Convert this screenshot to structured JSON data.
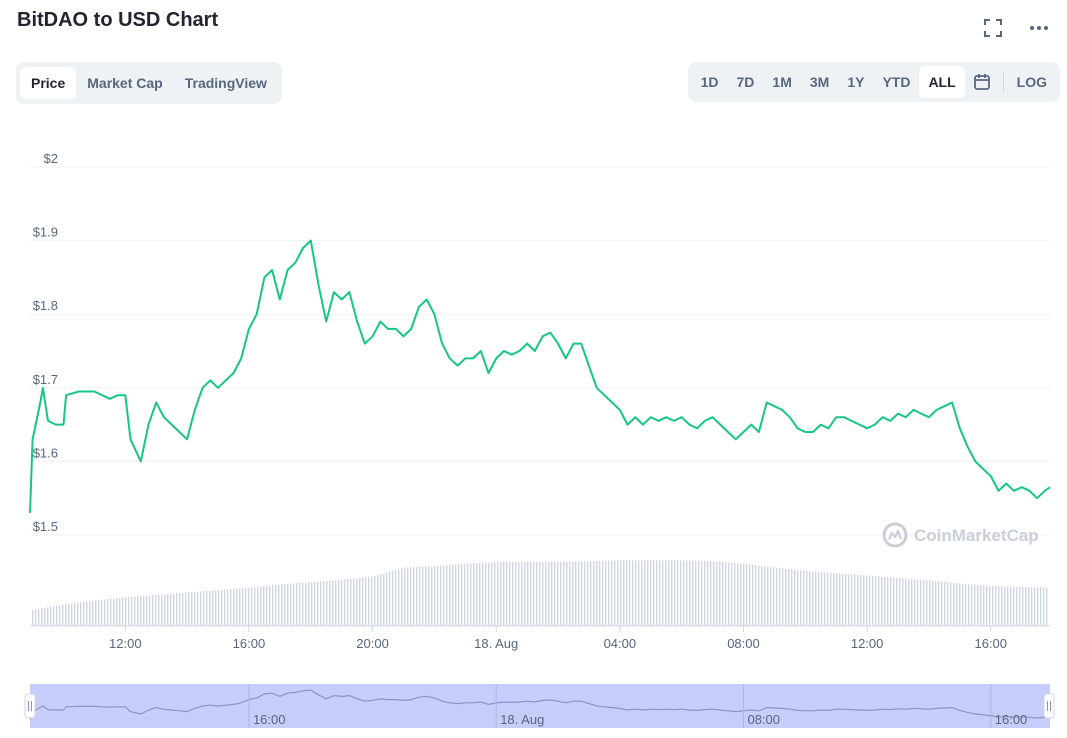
{
  "header": {
    "title": "BitDAO to USD Chart"
  },
  "icons": {
    "fullscreen": "fullscreen-icon",
    "more": "more-icon",
    "calendar": "calendar-icon",
    "watermark": "coinmarketcap-logo-icon"
  },
  "tabs": [
    {
      "label": "Price",
      "active": true
    },
    {
      "label": "Market Cap",
      "active": false
    },
    {
      "label": "TradingView",
      "active": false
    }
  ],
  "ranges": [
    {
      "label": "1D",
      "active": false
    },
    {
      "label": "7D",
      "active": false
    },
    {
      "label": "1M",
      "active": false
    },
    {
      "label": "3M",
      "active": false
    },
    {
      "label": "1Y",
      "active": false
    },
    {
      "label": "YTD",
      "active": false
    },
    {
      "label": "ALL",
      "active": true
    }
  ],
  "log_label": "LOG",
  "watermark_text": "CoinMarketCap",
  "colors": {
    "line": "#16c784",
    "volume": "#cfd6e4",
    "navigator_fill": "#c6cdfa",
    "navigator_line": "#8a93c4",
    "grid": "#eff2f5"
  },
  "chart_data": {
    "type": "line",
    "ylim": [
      1.5,
      2.0
    ],
    "y_ticks": [
      {
        "value": 1.5,
        "label": "$1.5"
      },
      {
        "value": 1.6,
        "label": "$1.6"
      },
      {
        "value": 1.7,
        "label": "$1.7"
      },
      {
        "value": 1.8,
        "label": "$1.8"
      },
      {
        "value": 1.9,
        "label": "$1.9"
      },
      {
        "value": 2.0,
        "label": "$2"
      }
    ],
    "xlim": [
      "17 Aug 08:55",
      "18 Aug 17:55"
    ],
    "x_ticks": [
      {
        "time": "17 Aug 12:00",
        "label": "12:00"
      },
      {
        "time": "17 Aug 16:00",
        "label": "16:00"
      },
      {
        "time": "17 Aug 20:00",
        "label": "20:00"
      },
      {
        "time": "18 Aug 00:00",
        "label": "18. Aug"
      },
      {
        "time": "18 Aug 04:00",
        "label": "04:00"
      },
      {
        "time": "18 Aug 08:00",
        "label": "08:00"
      },
      {
        "time": "18 Aug 12:00",
        "label": "12:00"
      },
      {
        "time": "18 Aug 16:00",
        "label": "16:00"
      }
    ],
    "navigator_ticks": [
      {
        "time": "17 Aug 16:00",
        "label": "16:00"
      },
      {
        "time": "18 Aug 00:00",
        "label": "18. Aug"
      },
      {
        "time": "18 Aug 08:00",
        "label": "08:00"
      },
      {
        "time": "18 Aug 16:00",
        "label": "16:00"
      }
    ],
    "series": [
      {
        "type": "line",
        "x": [
          "17 Aug 08:55",
          "17 Aug 09:00",
          "17 Aug 09:15",
          "17 Aug 09:20",
          "17 Aug 09:30",
          "17 Aug 09:45",
          "17 Aug 10:00",
          "17 Aug 10:05",
          "17 Aug 10:30",
          "17 Aug 11:00",
          "17 Aug 11:15",
          "17 Aug 11:30",
          "17 Aug 11:45",
          "17 Aug 12:00",
          "17 Aug 12:10",
          "17 Aug 12:30",
          "17 Aug 12:45",
          "17 Aug 13:00",
          "17 Aug 13:15",
          "17 Aug 13:30",
          "17 Aug 13:45",
          "17 Aug 14:00",
          "17 Aug 14:15",
          "17 Aug 14:30",
          "17 Aug 14:45",
          "17 Aug 15:00",
          "17 Aug 15:15",
          "17 Aug 15:30",
          "17 Aug 15:45",
          "17 Aug 16:00",
          "17 Aug 16:15",
          "17 Aug 16:30",
          "17 Aug 16:45",
          "17 Aug 17:00",
          "17 Aug 17:15",
          "17 Aug 17:30",
          "17 Aug 17:45",
          "17 Aug 18:00",
          "17 Aug 18:15",
          "17 Aug 18:30",
          "17 Aug 18:45",
          "17 Aug 19:00",
          "17 Aug 19:15",
          "17 Aug 19:30",
          "17 Aug 19:45",
          "17 Aug 20:00",
          "17 Aug 20:15",
          "17 Aug 20:30",
          "17 Aug 20:45",
          "17 Aug 21:00",
          "17 Aug 21:15",
          "17 Aug 21:30",
          "17 Aug 21:45",
          "17 Aug 22:00",
          "17 Aug 22:15",
          "17 Aug 22:30",
          "17 Aug 22:45",
          "17 Aug 23:00",
          "17 Aug 23:15",
          "17 Aug 23:30",
          "17 Aug 23:45",
          "18 Aug 00:00",
          "18 Aug 00:15",
          "18 Aug 00:30",
          "18 Aug 00:45",
          "18 Aug 01:00",
          "18 Aug 01:15",
          "18 Aug 01:30",
          "18 Aug 01:45",
          "18 Aug 02:00",
          "18 Aug 02:15",
          "18 Aug 02:30",
          "18 Aug 02:45",
          "18 Aug 03:00",
          "18 Aug 03:15",
          "18 Aug 03:30",
          "18 Aug 03:45",
          "18 Aug 04:00",
          "18 Aug 04:15",
          "18 Aug 04:30",
          "18 Aug 04:45",
          "18 Aug 05:00",
          "18 Aug 05:15",
          "18 Aug 05:30",
          "18 Aug 05:45",
          "18 Aug 06:00",
          "18 Aug 06:15",
          "18 Aug 06:30",
          "18 Aug 06:45",
          "18 Aug 07:00",
          "18 Aug 07:15",
          "18 Aug 07:30",
          "18 Aug 07:45",
          "18 Aug 08:00",
          "18 Aug 08:15",
          "18 Aug 08:30",
          "18 Aug 08:45",
          "18 Aug 09:00",
          "18 Aug 09:15",
          "18 Aug 09:30",
          "18 Aug 09:45",
          "18 Aug 10:00",
          "18 Aug 10:15",
          "18 Aug 10:30",
          "18 Aug 10:45",
          "18 Aug 11:00",
          "18 Aug 11:15",
          "18 Aug 11:30",
          "18 Aug 11:45",
          "18 Aug 12:00",
          "18 Aug 12:15",
          "18 Aug 12:30",
          "18 Aug 12:45",
          "18 Aug 13:00",
          "18 Aug 13:15",
          "18 Aug 13:30",
          "18 Aug 13:45",
          "18 Aug 14:00",
          "18 Aug 14:15",
          "18 Aug 14:30",
          "18 Aug 14:45",
          "18 Aug 15:00",
          "18 Aug 15:15",
          "18 Aug 15:30",
          "18 Aug 15:45",
          "18 Aug 16:00",
          "18 Aug 16:15",
          "18 Aug 16:30",
          "18 Aug 16:45",
          "18 Aug 17:00",
          "18 Aug 17:15",
          "18 Aug 17:30",
          "18 Aug 17:45",
          "18 Aug 17:55"
        ],
        "y": [
          1.53,
          1.63,
          1.68,
          1.7,
          1.655,
          1.65,
          1.65,
          1.69,
          1.695,
          1.695,
          1.69,
          1.685,
          1.69,
          1.69,
          1.63,
          1.6,
          1.65,
          1.68,
          1.66,
          1.65,
          1.64,
          1.63,
          1.67,
          1.7,
          1.71,
          1.7,
          1.71,
          1.72,
          1.74,
          1.78,
          1.8,
          1.85,
          1.86,
          1.82,
          1.86,
          1.87,
          1.89,
          1.9,
          1.84,
          1.79,
          1.83,
          1.82,
          1.83,
          1.79,
          1.76,
          1.77,
          1.79,
          1.78,
          1.78,
          1.77,
          1.78,
          1.81,
          1.82,
          1.8,
          1.76,
          1.74,
          1.73,
          1.74,
          1.74,
          1.75,
          1.72,
          1.74,
          1.75,
          1.745,
          1.75,
          1.76,
          1.75,
          1.77,
          1.775,
          1.76,
          1.74,
          1.76,
          1.76,
          1.73,
          1.7,
          1.69,
          1.68,
          1.67,
          1.65,
          1.66,
          1.65,
          1.66,
          1.655,
          1.66,
          1.655,
          1.66,
          1.65,
          1.645,
          1.655,
          1.66,
          1.65,
          1.64,
          1.63,
          1.64,
          1.65,
          1.64,
          1.68,
          1.675,
          1.67,
          1.66,
          1.645,
          1.64,
          1.64,
          1.65,
          1.645,
          1.66,
          1.66,
          1.655,
          1.65,
          1.645,
          1.65,
          1.66,
          1.655,
          1.665,
          1.66,
          1.67,
          1.665,
          1.66,
          1.67,
          1.675,
          1.68,
          1.645,
          1.62,
          1.6,
          1.59,
          1.58,
          1.56,
          1.57,
          1.56,
          1.565,
          1.56,
          1.55,
          1.56,
          1.565
        ]
      },
      {
        "type": "bar",
        "name": "volume",
        "x": [
          "17 Aug 09:00",
          "17 Aug 10:00",
          "17 Aug 11:00",
          "17 Aug 12:00",
          "17 Aug 13:00",
          "17 Aug 14:00",
          "17 Aug 15:00",
          "17 Aug 16:00",
          "17 Aug 17:00",
          "17 Aug 18:00",
          "17 Aug 19:00",
          "17 Aug 20:00",
          "17 Aug 21:00",
          "17 Aug 22:00",
          "17 Aug 23:00",
          "18 Aug 00:00",
          "18 Aug 01:00",
          "18 Aug 02:00",
          "18 Aug 03:00",
          "18 Aug 04:00",
          "18 Aug 05:00",
          "18 Aug 06:00",
          "18 Aug 07:00",
          "18 Aug 08:00",
          "18 Aug 09:00",
          "18 Aug 10:00",
          "18 Aug 11:00",
          "18 Aug 12:00",
          "18 Aug 13:00",
          "18 Aug 14:00",
          "18 Aug 15:00",
          "18 Aug 16:00",
          "18 Aug 17:00",
          "18 Aug 17:55"
        ],
        "y": [
          0.2,
          0.27,
          0.32,
          0.36,
          0.39,
          0.42,
          0.45,
          0.48,
          0.52,
          0.55,
          0.58,
          0.62,
          0.73,
          0.75,
          0.78,
          0.8,
          0.8,
          0.8,
          0.81,
          0.82,
          0.82,
          0.82,
          0.81,
          0.78,
          0.73,
          0.69,
          0.66,
          0.63,
          0.6,
          0.57,
          0.53,
          0.5,
          0.49,
          0.48
        ]
      }
    ]
  }
}
